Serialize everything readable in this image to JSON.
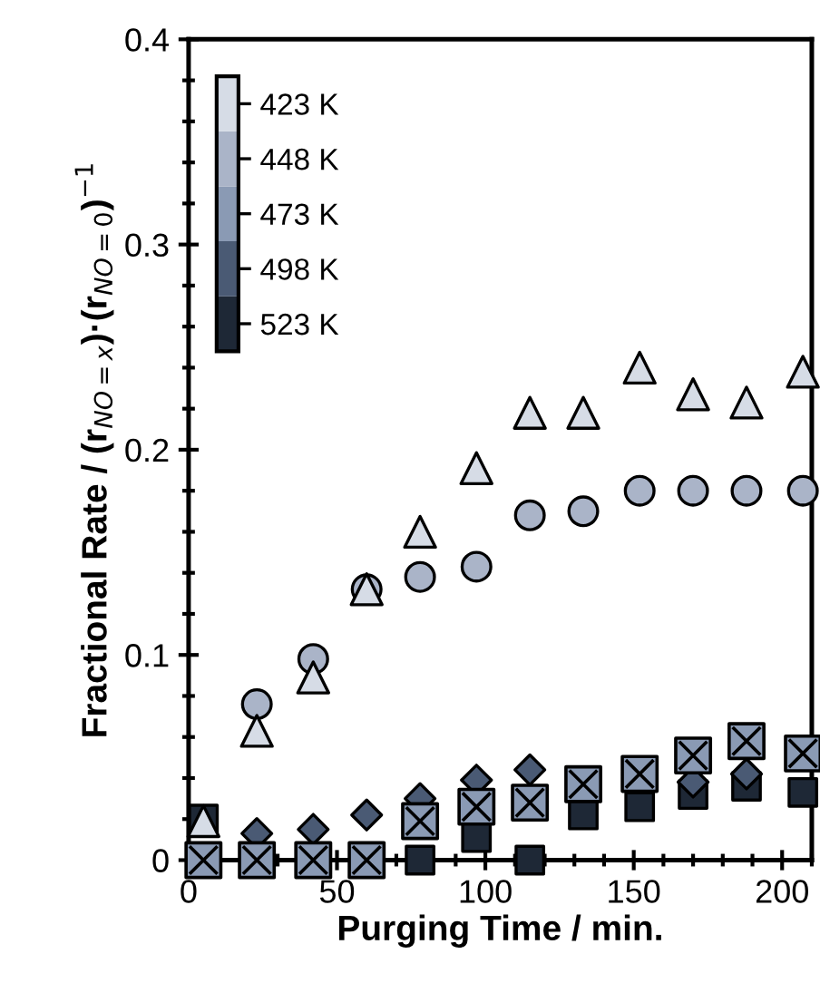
{
  "chart_data": {
    "type": "scatter",
    "xlabel": "Purging Time / min.",
    "ylabel": "Fractional Rate / (r$_{NO=x}$)·(r$_{NO=0}$)$^{−1}$",
    "x": [
      5,
      23,
      42,
      60,
      78,
      97,
      115,
      133,
      152,
      170,
      188,
      207
    ],
    "xlim": [
      0,
      210
    ],
    "xticks": [
      0,
      50,
      100,
      150,
      200
    ],
    "ylim": [
      0,
      0.4
    ],
    "yticks": [
      0,
      0.1,
      0.2,
      0.3,
      0.4
    ],
    "legend": "top left",
    "grid": false,
    "series": [
      {
        "name": "423 K",
        "color": "#d6dce6",
        "marker": "triangle",
        "values": [
          0.019,
          0.063,
          0.089,
          0.132,
          0.16,
          0.191,
          0.218,
          0.218,
          0.24,
          0.227,
          0.223,
          0.238
        ]
      },
      {
        "name": "448 K",
        "color": "#aab4c8",
        "marker": "circle",
        "values": [
          null,
          0.076,
          0.098,
          0.132,
          0.138,
          0.143,
          0.168,
          0.17,
          0.18,
          0.18,
          0.18,
          0.18
        ]
      },
      {
        "name": "473 K",
        "color": "#8a9ab4",
        "marker": "cross",
        "values": [
          0,
          0,
          0,
          0,
          0.019,
          0.026,
          0.028,
          0.037,
          0.042,
          0.051,
          0.058,
          0.052
        ]
      },
      {
        "name": "498 K",
        "color": "#4a5a74",
        "marker": "diamond",
        "values": [
          null,
          0.013,
          0.015,
          0.022,
          0.03,
          0.039,
          0.044,
          null,
          null,
          0.038,
          0.042,
          null
        ]
      },
      {
        "name": "523 K",
        "color": "#1e2836",
        "marker": "square",
        "values": [
          0.02,
          null,
          null,
          null,
          0,
          0.011,
          0,
          0.022,
          0.026,
          0.032,
          0.036,
          0.033
        ]
      }
    ]
  }
}
